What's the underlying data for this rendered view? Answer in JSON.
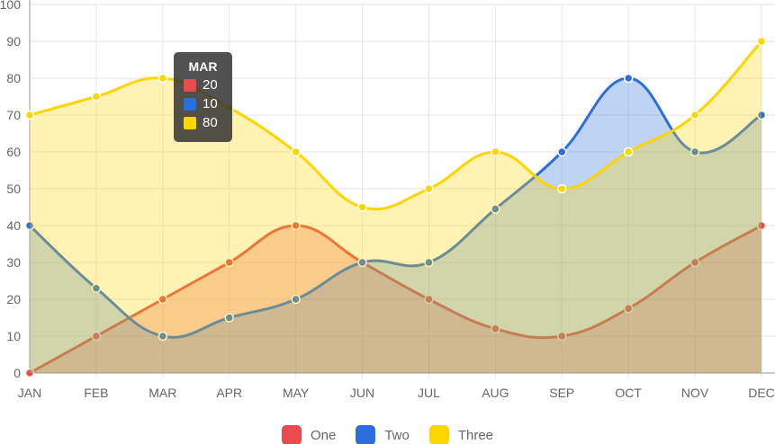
{
  "chart_data": {
    "type": "area",
    "categories": [
      "JAN",
      "FEB",
      "MAR",
      "APR",
      "MAY",
      "JUN",
      "JUL",
      "AUG",
      "SEP",
      "OCT",
      "NOV",
      "DEC"
    ],
    "ylim": [
      0,
      100
    ],
    "yticks": [
      0,
      10,
      20,
      30,
      40,
      50,
      60,
      70,
      80,
      90,
      100
    ],
    "grid": true,
    "legend_position": "bottom",
    "series": [
      {
        "name": "One",
        "color": "#e84c4c",
        "values": [
          0,
          10,
          20,
          30,
          40,
          30,
          20,
          12,
          10,
          17.5,
          30,
          40
        ]
      },
      {
        "name": "Two",
        "color": "#2a6fdb",
        "values": [
          40,
          23,
          10,
          15,
          20,
          30,
          30,
          44.5,
          60,
          80,
          60,
          70
        ]
      },
      {
        "name": "Three",
        "color": "#ffd500",
        "values": [
          70,
          75,
          80,
          72,
          60,
          45,
          50,
          60,
          50,
          60,
          70,
          90
        ]
      }
    ],
    "tooltip": {
      "title": "MAR",
      "values": [
        "20",
        "10",
        "80"
      ]
    }
  }
}
